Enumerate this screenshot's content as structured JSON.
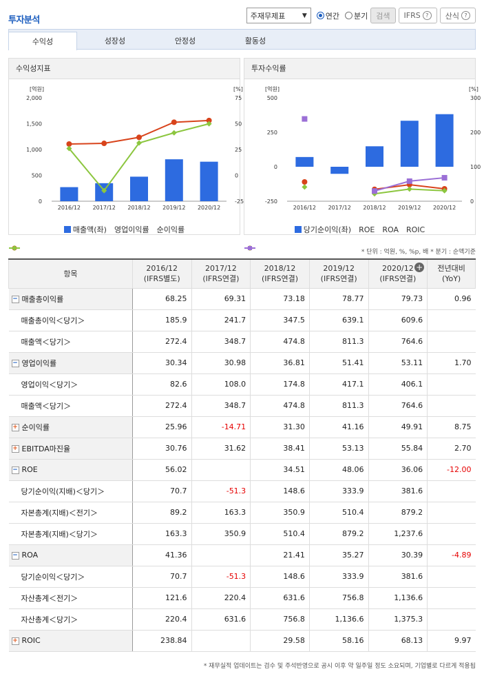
{
  "header": {
    "title": "투자분석",
    "select_value": "주재무제표",
    "radio_annual": "연간",
    "radio_quarter": "분기",
    "search_btn": "검색",
    "ifrs_btn": "IFRS",
    "formula_btn": "산식",
    "help_glyph": "?"
  },
  "tabs": [
    "수익성",
    "성장성",
    "안정성",
    "활동성"
  ],
  "panels": {
    "left_title": "수익성지표",
    "right_title": "투자수익률"
  },
  "chart_data": [
    {
      "type": "bar",
      "title": "수익성지표",
      "categories": [
        "2016/12",
        "2017/12",
        "2018/12",
        "2019/12",
        "2020/12"
      ],
      "ylabel_left": "[억원]",
      "ylabel_right": "[%]",
      "ylim_left": [
        0,
        2000
      ],
      "ylim_right": [
        -25,
        75
      ],
      "yticks_left": [
        "2,000",
        "1,500",
        "1,000",
        "500",
        "0"
      ],
      "yticks_right": [
        "75",
        "50",
        "25",
        "0",
        "-25"
      ],
      "series": [
        {
          "name": "매출액(좌)",
          "kind": "bar",
          "axis": "left",
          "color": "#2d6be0",
          "values": [
            272.4,
            348.7,
            474.8,
            811.3,
            764.6
          ]
        },
        {
          "name": "영업이익률",
          "kind": "line",
          "axis": "right",
          "color": "#d8431b",
          "values": [
            30.34,
            30.98,
            36.81,
            51.41,
            53.11
          ]
        },
        {
          "name": "순이익률",
          "kind": "line",
          "axis": "right",
          "color": "#8cc63f",
          "values": [
            25.96,
            -14.71,
            31.3,
            41.16,
            49.91
          ]
        }
      ]
    },
    {
      "type": "bar",
      "title": "투자수익률",
      "categories": [
        "2016/12",
        "2017/12",
        "2018/12",
        "2019/12",
        "2020/12"
      ],
      "ylabel_left": "[억원]",
      "ylabel_right": "[%]",
      "ylim_left": [
        -250,
        500
      ],
      "ylim_right": [
        0,
        300
      ],
      "yticks_left": [
        "500",
        "250",
        "0",
        "-250"
      ],
      "yticks_right": [
        "300",
        "200",
        "100",
        "0"
      ],
      "series": [
        {
          "name": "당기순이익(좌)",
          "kind": "bar",
          "axis": "left",
          "color": "#2d6be0",
          "values": [
            70.7,
            -51.3,
            148.6,
            333.9,
            381.6
          ]
        },
        {
          "name": "ROE",
          "kind": "line",
          "axis": "right",
          "color": "#d8431b",
          "values": [
            56.02,
            null,
            34.51,
            48.06,
            36.06
          ]
        },
        {
          "name": "ROA",
          "kind": "line",
          "axis": "right",
          "color": "#8cc63f",
          "values": [
            41.36,
            null,
            21.41,
            35.27,
            30.39
          ]
        },
        {
          "name": "ROIC",
          "kind": "line",
          "axis": "right",
          "color": "#9b6fd6",
          "values": [
            238.84,
            null,
            29.58,
            58.16,
            68.13
          ]
        }
      ]
    }
  ],
  "note": "* 단위 : 억원, %, %p, 배   * 분기 : 순액기준",
  "table": {
    "headers": [
      [
        "항목"
      ],
      [
        "2016/12",
        "(IFRS별도)"
      ],
      [
        "2017/12",
        "(IFRS연결)"
      ],
      [
        "2018/12",
        "(IFRS연결)"
      ],
      [
        "2019/12",
        "(IFRS연결)"
      ],
      [
        "2020/12",
        "(IFRS연결)"
      ],
      [
        "전년대비",
        "(YoY)"
      ]
    ],
    "rows": [
      {
        "label": "매출총이익률",
        "kind": "grp",
        "toggle": "−",
        "values": [
          "68.25",
          "69.31",
          "73.18",
          "78.77",
          "79.73",
          "0.96"
        ]
      },
      {
        "label": "매출총이익＜당기＞",
        "kind": "sub",
        "values": [
          "185.9",
          "241.7",
          "347.5",
          "639.1",
          "609.6",
          ""
        ]
      },
      {
        "label": "매출액＜당기＞",
        "kind": "sub",
        "values": [
          "272.4",
          "348.7",
          "474.8",
          "811.3",
          "764.6",
          ""
        ]
      },
      {
        "label": "영업이익률",
        "kind": "grp",
        "toggle": "−",
        "values": [
          "30.34",
          "30.98",
          "36.81",
          "51.41",
          "53.11",
          "1.70"
        ]
      },
      {
        "label": "영업이익＜당기＞",
        "kind": "sub",
        "values": [
          "82.6",
          "108.0",
          "174.8",
          "417.1",
          "406.1",
          ""
        ]
      },
      {
        "label": "매출액＜당기＞",
        "kind": "sub",
        "values": [
          "272.4",
          "348.7",
          "474.8",
          "811.3",
          "764.6",
          ""
        ]
      },
      {
        "label": "순이익률",
        "kind": "grp",
        "toggle": "+",
        "values": [
          "25.96",
          "-14.71",
          "31.30",
          "41.16",
          "49.91",
          "8.75"
        ]
      },
      {
        "label": "EBITDA마진율",
        "kind": "grp",
        "toggle": "+",
        "values": [
          "30.76",
          "31.62",
          "38.41",
          "53.13",
          "55.84",
          "2.70"
        ]
      },
      {
        "label": "ROE",
        "kind": "grp",
        "toggle": "−",
        "values": [
          "56.02",
          "",
          "34.51",
          "48.06",
          "36.06",
          "-12.00"
        ]
      },
      {
        "label": "당기순이익(지배)＜당기＞",
        "kind": "sub",
        "values": [
          "70.7",
          "-51.3",
          "148.6",
          "333.9",
          "381.6",
          ""
        ]
      },
      {
        "label": "자본총계(지배)＜전기＞",
        "kind": "sub",
        "values": [
          "89.2",
          "163.3",
          "350.9",
          "510.4",
          "879.2",
          ""
        ]
      },
      {
        "label": "자본총계(지배)＜당기＞",
        "kind": "sub",
        "values": [
          "163.3",
          "350.9",
          "510.4",
          "879.2",
          "1,237.6",
          ""
        ]
      },
      {
        "label": "ROA",
        "kind": "grp",
        "toggle": "−",
        "values": [
          "41.36",
          "",
          "21.41",
          "35.27",
          "30.39",
          "-4.89"
        ]
      },
      {
        "label": "당기순이익＜당기＞",
        "kind": "sub",
        "values": [
          "70.7",
          "-51.3",
          "148.6",
          "333.9",
          "381.6",
          ""
        ]
      },
      {
        "label": "자산총계＜전기＞",
        "kind": "sub",
        "values": [
          "121.6",
          "220.4",
          "631.6",
          "756.8",
          "1,136.6",
          ""
        ]
      },
      {
        "label": "자산총계＜당기＞",
        "kind": "sub",
        "values": [
          "220.4",
          "631.6",
          "756.8",
          "1,136.6",
          "1,375.3",
          ""
        ]
      },
      {
        "label": "ROIC",
        "kind": "grp",
        "toggle": "+",
        "values": [
          "238.84",
          "",
          "29.58",
          "58.16",
          "68.13",
          "9.97"
        ]
      }
    ]
  },
  "footnote": "* 재무실적 업데이트는 검수 및 주석반영으로 공시 이후 약 일주일 정도 소요되며, 기업별로 다르게 적용됩",
  "expand_glyph": "+"
}
